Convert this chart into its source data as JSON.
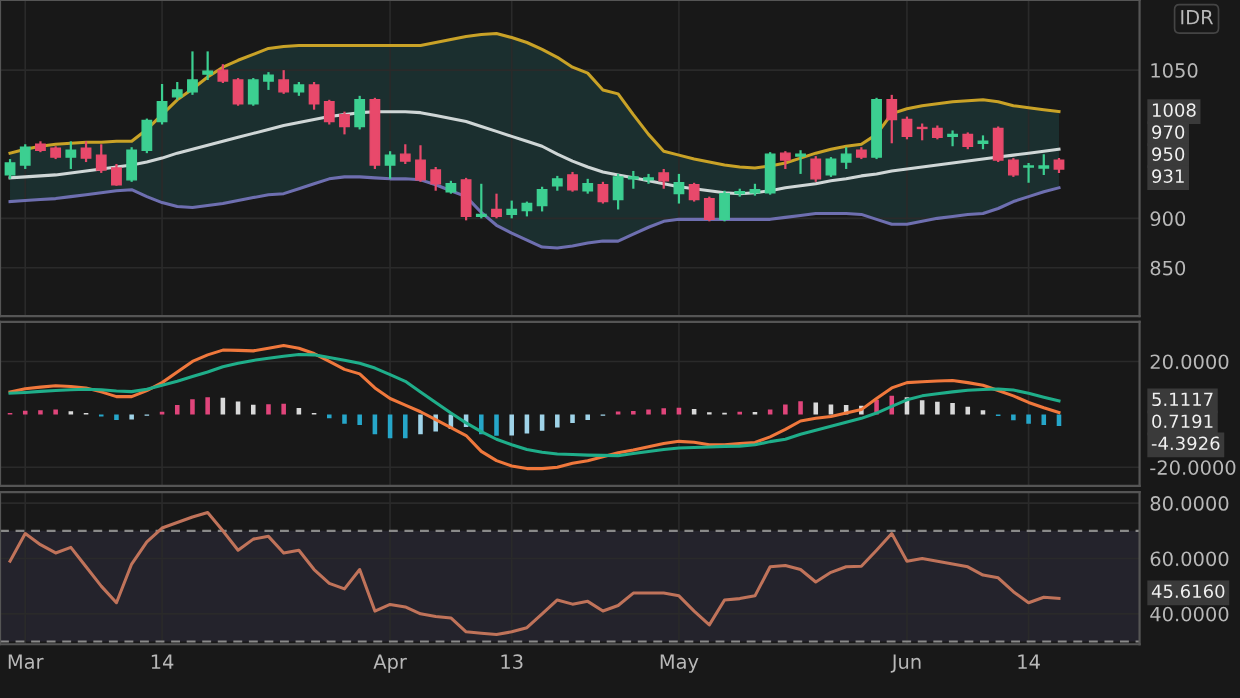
{
  "chart_data": [
    {
      "type": "candlestick",
      "tick_labels": "y",
      "grid": true,
      "categories": [
        null,
        null,
        null,
        null,
        null,
        null,
        null,
        null,
        null,
        null,
        null,
        null,
        null,
        null,
        null,
        null,
        null,
        null,
        null,
        null,
        null,
        null,
        null,
        null,
        null,
        null,
        null,
        null,
        null,
        null,
        null,
        null,
        null,
        null,
        null,
        null,
        null,
        null,
        null,
        null,
        null,
        null,
        null,
        null,
        null,
        null,
        null,
        null,
        null,
        null,
        null,
        null,
        null,
        null,
        null,
        null,
        null,
        null,
        null,
        null,
        null,
        null,
        null,
        null,
        null,
        null,
        null,
        null,
        null,
        null
      ],
      "ohlc": [
        [
          944,
          960,
          940,
          956
        ],
        [
          954,
          975,
          950,
          972
        ],
        [
          975,
          978,
          967,
          969
        ],
        [
          971,
          973,
          960,
          962
        ],
        [
          962,
          978,
          950,
          969
        ],
        [
          971,
          978,
          957,
          961
        ],
        [
          964,
          975,
          946,
          949
        ],
        [
          951,
          955,
          933,
          934
        ],
        [
          939,
          972,
          937,
          969
        ],
        [
          969,
          1001,
          966,
          999
        ],
        [
          998,
          1036,
          995,
          1018
        ],
        [
          1023,
          1038,
          1020,
          1030
        ],
        [
          1028,
          1069,
          1025,
          1040
        ],
        [
          1046,
          1069,
          1040,
          1049
        ],
        [
          1050,
          1056,
          1037,
          1039
        ],
        [
          1040,
          1042,
          1014,
          1016
        ],
        [
          1016,
          1042,
          1014,
          1040
        ],
        [
          1039,
          1048,
          1030,
          1045
        ],
        [
          1040,
          1050,
          1026,
          1028
        ],
        [
          1028,
          1038,
          1024,
          1035
        ],
        [
          1035,
          1038,
          1010,
          1016
        ],
        [
          1018,
          1020,
          995,
          998
        ],
        [
          1005,
          1008,
          985,
          993
        ],
        [
          993,
          1024,
          990,
          1020
        ],
        [
          1020,
          1022,
          950,
          954
        ],
        [
          954,
          968,
          940,
          964
        ],
        [
          965,
          975,
          955,
          958
        ],
        [
          959,
          974,
          937,
          939
        ],
        [
          949,
          952,
          928,
          935
        ],
        [
          927,
          938,
          925,
          935
        ],
        [
          939,
          941,
          898,
          902
        ],
        [
          902,
          935,
          900,
          904
        ],
        [
          909,
          925,
          900,
          902
        ],
        [
          904,
          918,
          900,
          909
        ],
        [
          908,
          917,
          902,
          915
        ],
        [
          913,
          932,
          907,
          929
        ],
        [
          933,
          943,
          928,
          940
        ],
        [
          944,
          947,
          927,
          929
        ],
        [
          928,
          940,
          925,
          935
        ],
        [
          934,
          937,
          915,
          917
        ],
        [
          919,
          945,
          909,
          942
        ],
        [
          940,
          948,
          930,
          942
        ],
        [
          939,
          945,
          935,
          941
        ],
        [
          946,
          950,
          930,
          938
        ],
        [
          925,
          945,
          915,
          936
        ],
        [
          934,
          936,
          917,
          919
        ],
        [
          920,
          922,
          897,
          899
        ],
        [
          899,
          928,
          897,
          925
        ],
        [
          925,
          930,
          922,
          927
        ],
        [
          926,
          935,
          923,
          929
        ],
        [
          926,
          967,
          924,
          965
        ],
        [
          966,
          968,
          950,
          959
        ],
        [
          963,
          969,
          945,
          965
        ],
        [
          960,
          963,
          937,
          940
        ],
        [
          944,
          962,
          942,
          960
        ],
        [
          957,
          972,
          950,
          965
        ],
        [
          969,
          972,
          960,
          962
        ],
        [
          962,
          1022,
          960,
          1020
        ],
        [
          1020,
          1025,
          976,
          1000
        ],
        [
          1000,
          1003,
          980,
          983
        ],
        [
          992,
          996,
          979,
          991
        ],
        [
          991,
          994,
          980,
          982
        ],
        [
          983,
          989,
          973,
          985
        ],
        [
          985,
          987,
          970,
          973
        ],
        [
          976,
          984,
          970,
          978
        ],
        [
          991,
          993,
          957,
          959
        ],
        [
          959,
          961,
          942,
          944
        ],
        [
          952,
          956,
          936,
          953
        ],
        [
          951,
          965,
          944,
          953
        ],
        [
          959,
          961,
          946,
          950
        ]
      ],
      "colors": [
        "#3ccf91",
        "#3ccf91",
        "#e8496b",
        "#e8496b",
        "#3ccf91",
        "#e8496b",
        "#e8496b",
        "#e8496b",
        "#3ccf91",
        "#3ccf91",
        "#3ccf91",
        "#3ccf91",
        "#3ccf91",
        "#3ccf91",
        "#e8496b",
        "#e8496b",
        "#3ccf91",
        "#3ccf91",
        "#e8496b",
        "#3ccf91",
        "#e8496b",
        "#e8496b",
        "#e8496b",
        "#3ccf91",
        "#e8496b",
        "#3ccf91",
        "#e8496b",
        "#e8496b",
        "#e8496b",
        "#3ccf91",
        "#e8496b",
        "#3ccf91",
        "#e8496b",
        "#3ccf91",
        "#3ccf91",
        "#3ccf91",
        "#3ccf91",
        "#e8496b",
        "#3ccf91",
        "#e8496b",
        "#3ccf91",
        "#3ccf91",
        "#3ccf91",
        "#e8496b",
        "#3ccf91",
        "#e8496b",
        "#e8496b",
        "#3ccf91",
        "#3ccf91",
        "#3ccf91",
        "#3ccf91",
        "#e8496b",
        "#3ccf91",
        "#e8496b",
        "#3ccf91",
        "#3ccf91",
        "#e8496b",
        "#3ccf91",
        "#e8496b",
        "#e8496b",
        "#e8496b",
        "#e8496b",
        "#3ccf91",
        "#e8496b",
        "#3ccf91",
        "#e8496b",
        "#e8496b",
        "#3ccf91",
        "#3ccf91",
        "#e8496b"
      ],
      "series": [
        {
          "type": "line",
          "color": "#c9a227",
          "values": [
            966,
            970,
            973,
            975,
            976,
            977,
            977,
            978,
            978,
            990,
            1005,
            1020,
            1031,
            1043,
            1053,
            1060,
            1066,
            1072,
            1074,
            1075,
            1075,
            1075,
            1075,
            1075,
            1075,
            1075,
            1075,
            1075,
            1078,
            1081,
            1084,
            1086,
            1087,
            1083,
            1078,
            1071,
            1063,
            1053,
            1047,
            1030,
            1026,
            1005,
            985,
            968,
            964,
            960,
            957,
            954,
            952,
            951,
            953,
            956,
            961,
            966,
            970,
            973,
            975,
            985,
            1006,
            1011,
            1014,
            1016,
            1018,
            1019,
            1020,
            1018,
            1014,
            1012,
            1010,
            1008
          ]
        },
        {
          "type": "line",
          "color": "#cfd6d6",
          "values": [
            941,
            942,
            943,
            944,
            946,
            948,
            950,
            952,
            954,
            957,
            961,
            966,
            970,
            974,
            978,
            982,
            986,
            990,
            994,
            997,
            1000,
            1003,
            1005,
            1007,
            1008,
            1008,
            1008,
            1007,
            1004,
            1001,
            998,
            993,
            988,
            983,
            978,
            973,
            965,
            958,
            952,
            947,
            944,
            941,
            938,
            935,
            932,
            930,
            928,
            926,
            925,
            926,
            928,
            931,
            933,
            935,
            938,
            940,
            943,
            945,
            948,
            950,
            952,
            954,
            956,
            958,
            960,
            962,
            964,
            966,
            968,
            970
          ],
          "lower": [
            917,
            918,
            919,
            920,
            922,
            924,
            926,
            928,
            929,
            922,
            916,
            912,
            911,
            913,
            915,
            918,
            921,
            924,
            925,
            930,
            935,
            940,
            942,
            942,
            941,
            940,
            940,
            939,
            934,
            928,
            922,
            906,
            893,
            885,
            878,
            871,
            870,
            872,
            875,
            877,
            877,
            884,
            891,
            897,
            899,
            899,
            899,
            899,
            899,
            899,
            899,
            901,
            903,
            905,
            905,
            905,
            904,
            899,
            894,
            894,
            897,
            900,
            902,
            904,
            905,
            910,
            917,
            922,
            927,
            931
          ],
          "upper": [
            966,
            970,
            973,
            975,
            976,
            977,
            977,
            978,
            978,
            990,
            1005,
            1020,
            1031,
            1043,
            1053,
            1060,
            1066,
            1072,
            1074,
            1075,
            1075,
            1075,
            1075,
            1075,
            1075,
            1075,
            1075,
            1075,
            1078,
            1081,
            1084,
            1086,
            1087,
            1083,
            1078,
            1071,
            1063,
            1053,
            1047,
            1030,
            1026,
            1005,
            985,
            968,
            964,
            960,
            957,
            954,
            952,
            951,
            953,
            956,
            961,
            966,
            970,
            973,
            975,
            985,
            1006,
            1011,
            1014,
            1016,
            1018,
            1019,
            1020,
            1018,
            1014,
            1012,
            1010,
            1008
          ]
        },
        {
          "type": "line",
          "color": "#6e6fb0",
          "values": [
            917,
            918,
            919,
            920,
            922,
            924,
            926,
            928,
            929,
            922,
            916,
            912,
            911,
            913,
            915,
            918,
            921,
            924,
            925,
            930,
            935,
            940,
            942,
            942,
            941,
            940,
            940,
            939,
            934,
            928,
            922,
            906,
            893,
            885,
            878,
            871,
            870,
            872,
            875,
            877,
            877,
            884,
            891,
            897,
            899,
            899,
            899,
            899,
            899,
            899,
            899,
            901,
            903,
            905,
            905,
            905,
            904,
            899,
            894,
            894,
            897,
            900,
            902,
            904,
            905,
            910,
            917,
            922,
            927,
            931
          ]
        }
      ],
      "ylim": [
        801,
        1121
      ],
      "yticks": [
        850,
        900,
        1050
      ],
      "ylabel": "IDR",
      "annotations": [
        "1008",
        "970",
        "950",
        "931"
      ]
    },
    {
      "type": "bar",
      "tick_labels": "y",
      "grid": true,
      "categories": [
        null,
        null,
        null,
        null,
        null,
        null,
        null,
        null,
        null,
        null,
        null,
        null,
        null,
        null,
        null,
        null,
        null,
        null,
        null,
        null,
        null,
        null,
        null,
        null,
        null,
        null,
        null,
        null,
        null,
        null,
        null,
        null,
        null,
        null,
        null,
        null,
        null,
        null,
        null,
        null,
        null,
        null,
        null,
        null,
        null,
        null,
        null,
        null,
        null,
        null,
        null,
        null,
        null,
        null,
        null,
        null,
        null,
        null,
        null,
        null,
        null,
        null,
        null,
        null,
        null,
        null,
        null,
        null,
        null,
        null
      ],
      "series": [
        {
          "type": "bar",
          "values": [
            0.5,
            1.4,
            1.6,
            1.8,
            1.2,
            0.5,
            -0.8,
            -2.1,
            -1.9,
            -0.5,
            1,
            3.5,
            5.7,
            6.5,
            6.3,
            4.9,
            3.6,
            3.8,
            4,
            2.4,
            0.5,
            -1.5,
            -3.5,
            -4,
            -7.5,
            -9,
            -9,
            -7.5,
            -6.5,
            -5.5,
            -4.8,
            -7.5,
            -8.1,
            -8,
            -7.2,
            -6.2,
            -5,
            -3.3,
            -2.1,
            -0.5,
            1.1,
            1.3,
            1.8,
            2.3,
            2.5,
            2,
            0.8,
            0.6,
            1,
            0.9,
            1.8,
            3.7,
            5,
            4.5,
            3.7,
            3.5,
            3.3,
            5.5,
            7,
            6.5,
            5.3,
            4.8,
            4.3,
            2.9,
            1.6,
            -0.6,
            -2.2,
            -3.5,
            -4,
            -4.4
          ],
          "colors": [
            "#e0457b",
            "#e0457b",
            "#e0457b",
            "#e0457b",
            "#d9d9d9",
            "#d9d9d9",
            "#26a6c9",
            "#26a6c9",
            "#9fd3e8",
            "#9fd3e8",
            "#e0457b",
            "#e0457b",
            "#e0457b",
            "#e0457b",
            "#d9d9d9",
            "#d9d9d9",
            "#d9d9d9",
            "#e0457b",
            "#e0457b",
            "#d9d9d9",
            "#d9d9d9",
            "#26a6c9",
            "#26a6c9",
            "#26a6c9",
            "#26a6c9",
            "#26a6c9",
            "#26a6c9",
            "#9fd3e8",
            "#9fd3e8",
            "#9fd3e8",
            "#9fd3e8",
            "#26a6c9",
            "#26a6c9",
            "#9fd3e8",
            "#9fd3e8",
            "#9fd3e8",
            "#9fd3e8",
            "#9fd3e8",
            "#9fd3e8",
            "#9fd3e8",
            "#e0457b",
            "#e0457b",
            "#e0457b",
            "#e0457b",
            "#e0457b",
            "#d9d9d9",
            "#d9d9d9",
            "#d9d9d9",
            "#e0457b",
            "#d9d9d9",
            "#e0457b",
            "#e0457b",
            "#e0457b",
            "#d9d9d9",
            "#d9d9d9",
            "#d9d9d9",
            "#d9d9d9",
            "#e0457b",
            "#e0457b",
            "#d9d9d9",
            "#d9d9d9",
            "#d9d9d9",
            "#d9d9d9",
            "#d9d9d9",
            "#d9d9d9",
            "#26a6c9",
            "#26a6c9",
            "#26a6c9",
            "#26a6c9",
            "#26a6c9"
          ]
        },
        {
          "type": "line",
          "color": "#f0783c",
          "values": [
            8.5,
            9.7,
            10.3,
            10.8,
            10.5,
            10,
            8.5,
            6.7,
            6.7,
            9,
            12,
            16,
            20,
            22.5,
            24.3,
            24.2,
            24,
            25,
            26,
            25,
            23,
            20,
            17,
            15.3,
            10,
            6,
            3.5,
            1,
            -2,
            -5,
            -8,
            -14,
            -17.5,
            -19.5,
            -20.5,
            -20.5,
            -20,
            -18.5,
            -17.5,
            -16,
            -14.5,
            -13.5,
            -12.2,
            -11,
            -10.2,
            -10.5,
            -11.5,
            -11.5,
            -11,
            -10.6,
            -8.5,
            -5.7,
            -2.5,
            -1.5,
            -0.8,
            0.5,
            1.8,
            6,
            10,
            12,
            12.3,
            12.6,
            12.8,
            12,
            11,
            9,
            7,
            4.5,
            2.5,
            0.7
          ]
        },
        {
          "type": "line",
          "color": "#1fae8a",
          "values": [
            8,
            8.3,
            8.7,
            9,
            9.3,
            9.5,
            9.3,
            8.8,
            8.6,
            9.5,
            11,
            12.5,
            14.3,
            16,
            18,
            19.3,
            20.4,
            21.2,
            22,
            22.6,
            22.5,
            21.5,
            20.5,
            19.3,
            17.5,
            15,
            12.5,
            8.5,
            4.5,
            0.5,
            -3.2,
            -6.5,
            -9.4,
            -11.5,
            -13.3,
            -14.3,
            -15,
            -15.2,
            -15.4,
            -15.5,
            -15.6,
            -14.8,
            -14,
            -13.3,
            -12.7,
            -12.5,
            -12.3,
            -12.1,
            -12,
            -11.5,
            -10.3,
            -9.4,
            -7.5,
            -6,
            -4.5,
            -3,
            -1.5,
            0.5,
            3,
            5.5,
            7,
            7.8,
            8.5,
            9.1,
            9.4,
            9.6,
            9.2,
            8,
            6.5,
            5.1
          ]
        }
      ],
      "ylim": [
        -27,
        35
      ],
      "yticks": [
        {
          "value": 20,
          "label": "20.0000"
        },
        {
          "value": -20,
          "label": "-20.0000"
        }
      ],
      "annotations": [
        "5.1117",
        "0.7191",
        "-4.3926"
      ]
    },
    {
      "type": "line",
      "grid": true,
      "categories": [
        null,
        "Mar",
        null,
        null,
        null,
        null,
        null,
        null,
        null,
        null,
        "14",
        null,
        null,
        null,
        null,
        null,
        null,
        null,
        null,
        null,
        null,
        null,
        null,
        null,
        null,
        "Apr",
        null,
        null,
        null,
        null,
        null,
        null,
        null,
        "13",
        null,
        null,
        null,
        null,
        null,
        null,
        null,
        null,
        null,
        null,
        "May",
        null,
        null,
        null,
        null,
        null,
        null,
        null,
        null,
        null,
        null,
        null,
        null,
        null,
        null,
        "Jun",
        null,
        null,
        null,
        null,
        null,
        null,
        null,
        "14",
        null,
        null
      ],
      "series": [
        {
          "color": "#c0735a",
          "values": [
            59,
            69,
            65,
            62,
            64,
            57,
            50,
            44,
            58,
            66,
            71,
            73,
            75,
            76.6,
            70,
            63,
            67,
            68,
            62,
            63,
            56,
            51,
            49,
            56,
            41,
            43.4,
            42.5,
            40,
            39,
            38.5,
            33.5,
            33,
            32.5,
            33.5,
            35,
            40,
            45,
            43.5,
            44.5,
            41,
            43,
            47.5,
            47.5,
            47.5,
            46.5,
            41,
            36,
            45,
            45.5,
            46.5,
            57,
            57.5,
            56,
            51.5,
            55,
            57,
            57.2,
            63,
            69,
            59,
            60,
            59,
            58,
            57,
            54,
            53,
            48,
            44,
            46,
            45.6
          ]
        }
      ],
      "ylim": [
        29,
        84
      ],
      "yticks": [
        {
          "value": 80,
          "label": "80.0000"
        },
        {
          "value": 60,
          "label": "60.0000"
        },
        {
          "value": 40,
          "label": "40.0000"
        }
      ],
      "bands": [
        {
          "axis": "y",
          "from": 30,
          "to": 70,
          "color": "#24232c"
        }
      ],
      "ref_lines": [
        {
          "axis": "y",
          "value": 70,
          "color": "#8a8a8a",
          "line_style": "dashed"
        },
        {
          "axis": "y",
          "value": 30,
          "color": "#8a8a8a",
          "line_style": "dashed"
        }
      ],
      "annotations": [
        "45.6160"
      ]
    }
  ]
}
